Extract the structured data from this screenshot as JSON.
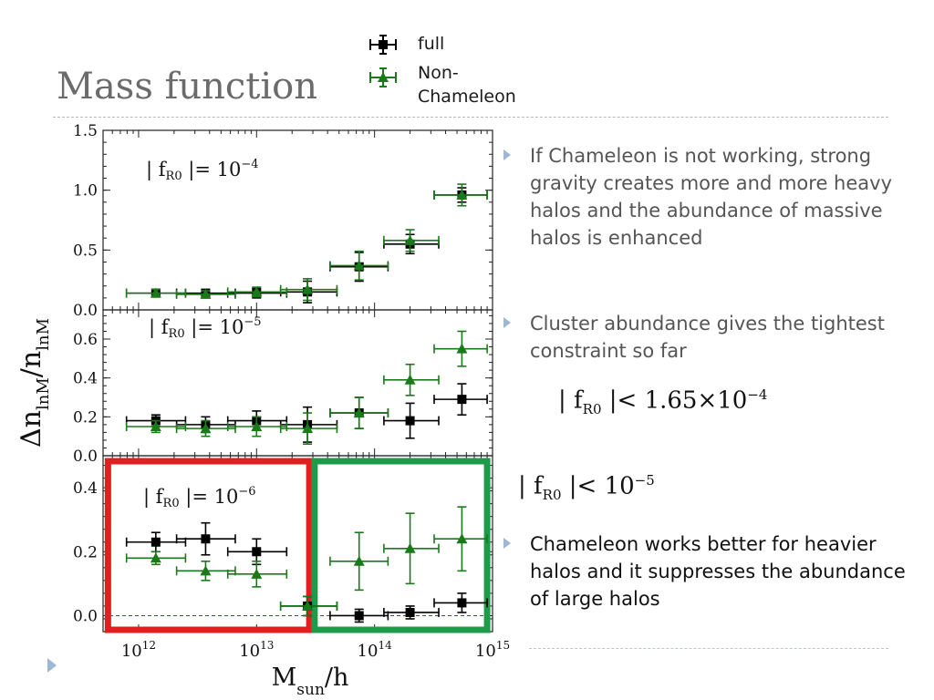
{
  "slide": {
    "title": "Mass function"
  },
  "legend": [
    {
      "label": "full",
      "color": "#000000",
      "marker": "square"
    },
    {
      "label": "Non-Chameleon",
      "label_lines": [
        "Non-",
        "Chameleon"
      ],
      "color": "#1a7a1a",
      "marker": "triangle"
    }
  ],
  "bullets": [
    {
      "text": "If Chameleon is not working, strong gravity creates more and more heavy halos and the abundance of massive halos is enhanced",
      "style": "grey"
    },
    {
      "text": "Cluster abundance gives the tightest constraint so far",
      "style": "grey"
    },
    {
      "text": "Chameleon works better for heavier halos and it suppresses the abundance of large halos",
      "style": "dark"
    }
  ],
  "formulas": [
    {
      "prefix": "| f",
      "sub": "R0",
      "rel": " |< 1.65×10",
      "sup": "−4"
    },
    {
      "prefix": "| f",
      "sub": "R0",
      "rel": " |< 10",
      "sup": "−5"
    }
  ],
  "chart_data": {
    "type": "scatter",
    "xlabel": "M_sun/h",
    "ylabel": "Δn_lnM/n_lnM",
    "x_scale": "log",
    "xlim": [
      500000000000.0,
      1000000000000000.0
    ],
    "x_ticks": [
      1000000000000.0,
      10000000000000.0,
      100000000000000.0,
      1000000000000000.0
    ],
    "x_tick_labels": [
      {
        "base": "10",
        "exp": "12"
      },
      {
        "base": "10",
        "exp": "13"
      },
      {
        "base": "10",
        "exp": "14"
      },
      {
        "base": "10",
        "exp": "15"
      }
    ],
    "colors": {
      "full": "#000000",
      "non_chameleon": "#1a7a1a",
      "zero_line": "#3344cc"
    },
    "panels": [
      {
        "fR0_label": {
          "prefix": "| f",
          "sub": "R0",
          "rel": " |= 10",
          "sup": "−4"
        },
        "ylim": [
          0.0,
          1.5
        ],
        "y_ticks": [
          0.0,
          0.5,
          1.0,
          1.5
        ],
        "y_tick_labels": [
          "0.0",
          "0.5",
          "1.0",
          "1.5"
        ],
        "series": [
          {
            "name": "full",
            "x": [
              1400000000000.0,
              3700000000000.0,
              10000000000000.0,
              27000000000000.0,
              74000000000000.0,
              200000000000000.0,
              550000000000000.0
            ],
            "x_lo": [
              790000000000.0,
              2100000000000.0,
              5700000000000.0,
              16000000000000.0,
              42000000000000.0,
              120000000000000.0,
              320000000000000.0
            ],
            "x_hi": [
              2500000000000.0,
              6600000000000.0,
              18000000000000.0,
              48000000000000.0,
              130000000000000.0,
              350000000000000.0,
              900000000000000.0
            ],
            "y": [
              0.14,
              0.14,
              0.14,
              0.15,
              0.36,
              0.55,
              0.96
            ],
            "y_err": [
              0.03,
              0.03,
              0.04,
              0.09,
              0.12,
              0.08,
              0.06
            ]
          },
          {
            "name": "Non-Chameleon",
            "x": [
              1400000000000.0,
              3700000000000.0,
              10000000000000.0,
              27000000000000.0,
              74000000000000.0,
              200000000000000.0,
              550000000000000.0
            ],
            "x_lo": [
              790000000000.0,
              2100000000000.0,
              5700000000000.0,
              16000000000000.0,
              42000000000000.0,
              120000000000000.0,
              320000000000000.0
            ],
            "x_hi": [
              2500000000000.0,
              6600000000000.0,
              18000000000000.0,
              48000000000000.0,
              130000000000000.0,
              350000000000000.0,
              900000000000000.0
            ],
            "y": [
              0.14,
              0.13,
              0.15,
              0.17,
              0.37,
              0.58,
              0.96
            ],
            "y_err": [
              0.03,
              0.03,
              0.04,
              0.09,
              0.12,
              0.09,
              0.09
            ]
          }
        ]
      },
      {
        "fR0_label": {
          "prefix": "| f",
          "sub": "R0",
          "rel": " |= 10",
          "sup": "−5"
        },
        "ylim": [
          0.0,
          0.75
        ],
        "y_ticks": [
          0.0,
          0.2,
          0.4,
          0.6
        ],
        "y_tick_labels": [
          "0.0",
          "0.2",
          "0.4",
          "0.6"
        ],
        "series": [
          {
            "name": "full",
            "x": [
              1400000000000.0,
              3700000000000.0,
              10000000000000.0,
              27000000000000.0,
              74000000000000.0,
              200000000000000.0,
              550000000000000.0
            ],
            "x_lo": [
              790000000000.0,
              2100000000000.0,
              5700000000000.0,
              16000000000000.0,
              42000000000000.0,
              120000000000000.0,
              320000000000000.0
            ],
            "x_hi": [
              2500000000000.0,
              6600000000000.0,
              18000000000000.0,
              48000000000000.0,
              130000000000000.0,
              350000000000000.0,
              900000000000000.0
            ],
            "y": [
              0.18,
              0.16,
              0.18,
              0.16,
              0.22,
              0.18,
              0.29
            ],
            "y_err": [
              0.03,
              0.04,
              0.05,
              0.09,
              0.08,
              0.09,
              0.08
            ]
          },
          {
            "name": "Non-Chameleon",
            "x": [
              1400000000000.0,
              3700000000000.0,
              10000000000000.0,
              27000000000000.0,
              74000000000000.0,
              200000000000000.0,
              550000000000000.0
            ],
            "x_lo": [
              790000000000.0,
              2100000000000.0,
              5700000000000.0,
              16000000000000.0,
              42000000000000.0,
              120000000000000.0,
              320000000000000.0
            ],
            "x_hi": [
              2500000000000.0,
              6600000000000.0,
              18000000000000.0,
              48000000000000.0,
              130000000000000.0,
              350000000000000.0,
              900000000000000.0
            ],
            "y": [
              0.15,
              0.14,
              0.15,
              0.14,
              0.22,
              0.39,
              0.55
            ],
            "y_err": [
              0.03,
              0.04,
              0.05,
              0.08,
              0.08,
              0.08,
              0.09
            ]
          }
        ]
      },
      {
        "fR0_label": {
          "prefix": "| f",
          "sub": "R0",
          "rel": " |= 10",
          "sup": "−6"
        },
        "ylim": [
          -0.05,
          0.5
        ],
        "y_ticks": [
          0.0,
          0.2,
          0.4
        ],
        "y_tick_labels": [
          "0.0",
          "0.2",
          "0.4"
        ],
        "highlights": [
          {
            "x_from": 550000000000.0,
            "x_to": 28000000000000.0,
            "color": "#e02020"
          },
          {
            "x_from": 31000000000000.0,
            "x_to": 900000000000000.0,
            "color": "#1f9a4a"
          }
        ],
        "series": [
          {
            "name": "full",
            "x": [
              1400000000000.0,
              3700000000000.0,
              10000000000000.0,
              27000000000000.0,
              74000000000000.0,
              200000000000000.0,
              550000000000000.0
            ],
            "x_lo": [
              790000000000.0,
              2100000000000.0,
              5700000000000.0,
              16000000000000.0,
              42000000000000.0,
              120000000000000.0,
              320000000000000.0
            ],
            "x_hi": [
              2500000000000.0,
              6600000000000.0,
              18000000000000.0,
              48000000000000.0,
              130000000000000.0,
              350000000000000.0,
              900000000000000.0
            ],
            "y": [
              0.23,
              0.24,
              0.2,
              0.03,
              0.0,
              0.01,
              0.04
            ],
            "y_err": [
              0.03,
              0.05,
              0.04,
              0.03,
              0.02,
              0.02,
              0.03
            ]
          },
          {
            "name": "Non-Chameleon",
            "x": [
              1400000000000.0,
              3700000000000.0,
              10000000000000.0,
              27000000000000.0,
              74000000000000.0,
              200000000000000.0,
              550000000000000.0
            ],
            "x_lo": [
              790000000000.0,
              2100000000000.0,
              5700000000000.0,
              16000000000000.0,
              42000000000000.0,
              120000000000000.0,
              320000000000000.0
            ],
            "x_hi": [
              2500000000000.0,
              6600000000000.0,
              18000000000000.0,
              48000000000000.0,
              130000000000000.0,
              350000000000000.0,
              900000000000000.0
            ],
            "y": [
              0.18,
              0.14,
              0.13,
              0.03,
              0.17,
              0.21,
              0.24
            ],
            "y_err": [
              0.02,
              0.03,
              0.04,
              0.03,
              0.09,
              0.11,
              0.1
            ]
          }
        ]
      }
    ]
  }
}
